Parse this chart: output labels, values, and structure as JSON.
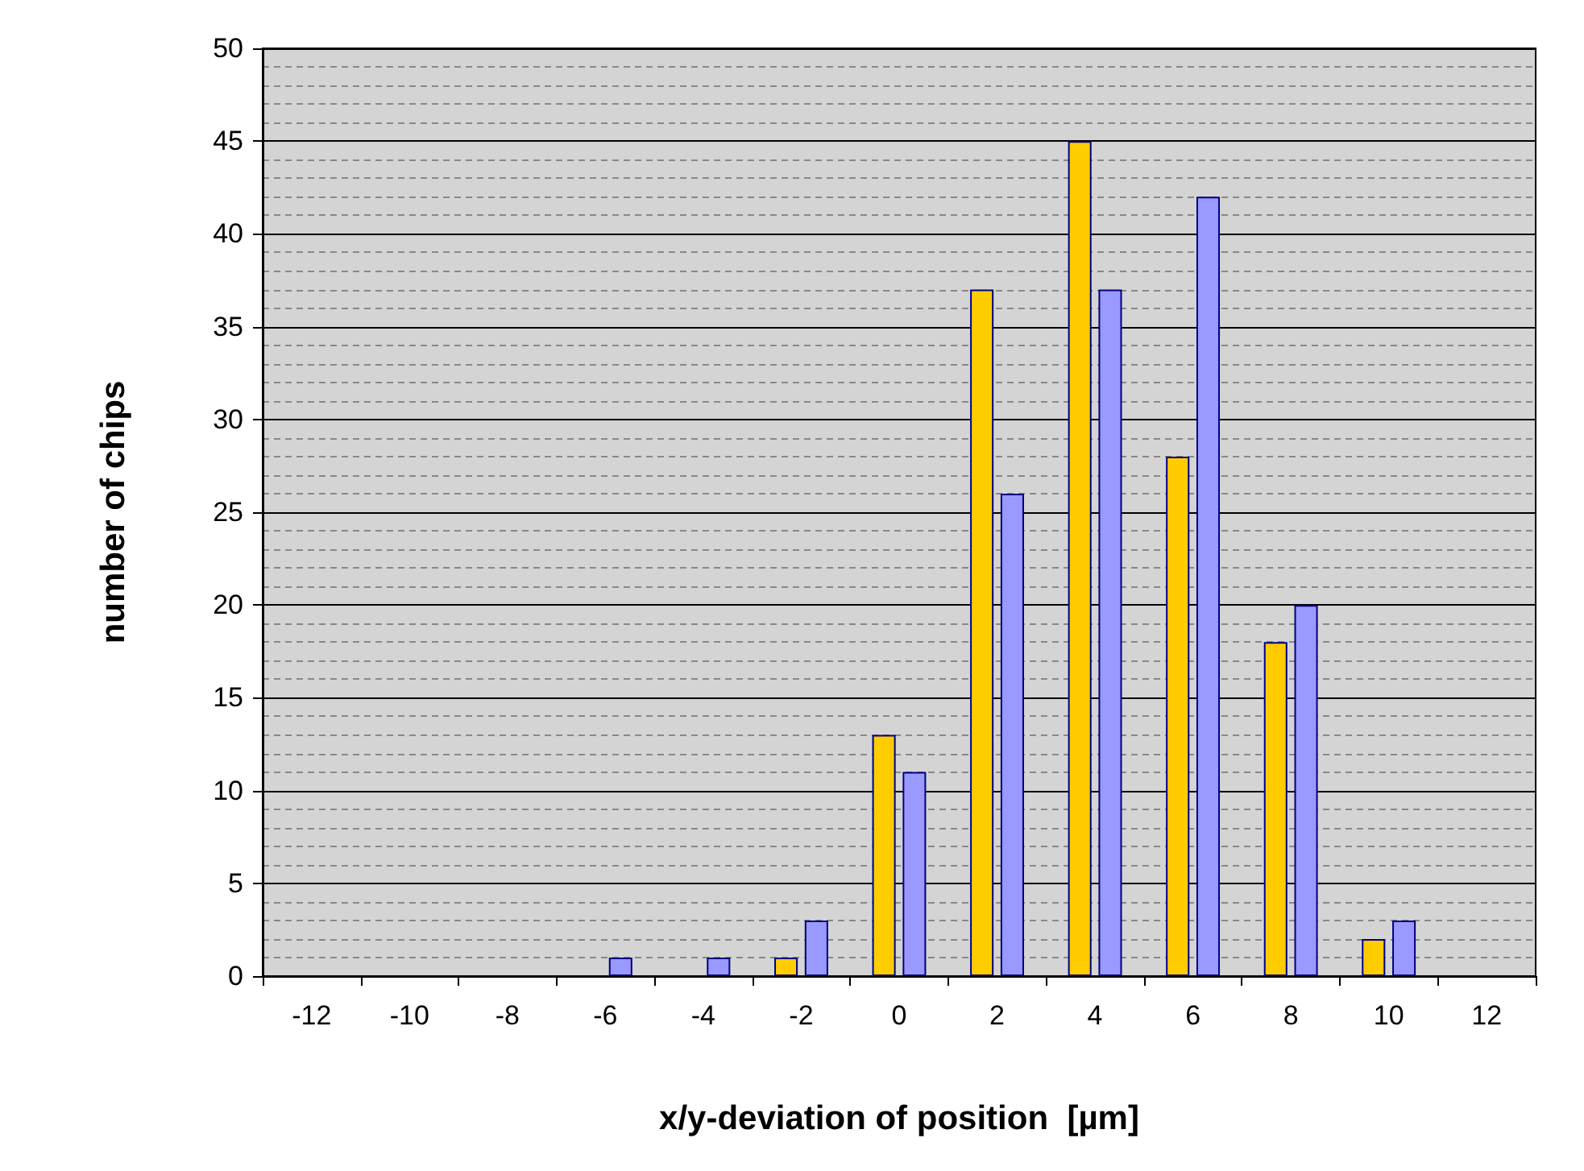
{
  "chart_data": {
    "type": "bar",
    "xlabel": "x/y-deviation of position  [µm]",
    "ylabel": "number of chips",
    "categories": [
      "-12",
      "-10",
      "-8",
      "-6",
      "-4",
      "-2",
      "0",
      "2",
      "4",
      "6",
      "8",
      "10",
      "12"
    ],
    "series": [
      {
        "color": "#ffcc00",
        "values": [
          0,
          0,
          0,
          0,
          0,
          1,
          13,
          37,
          45,
          28,
          18,
          2,
          0
        ]
      },
      {
        "color": "#9999ff",
        "values": [
          0,
          0,
          0,
          1,
          1,
          3,
          11,
          26,
          37,
          42,
          20,
          3,
          0
        ]
      }
    ],
    "ylim": [
      0,
      50
    ],
    "yticks": [
      0,
      5,
      10,
      15,
      20,
      25,
      30,
      35,
      40,
      45,
      50
    ],
    "grid": "y"
  }
}
